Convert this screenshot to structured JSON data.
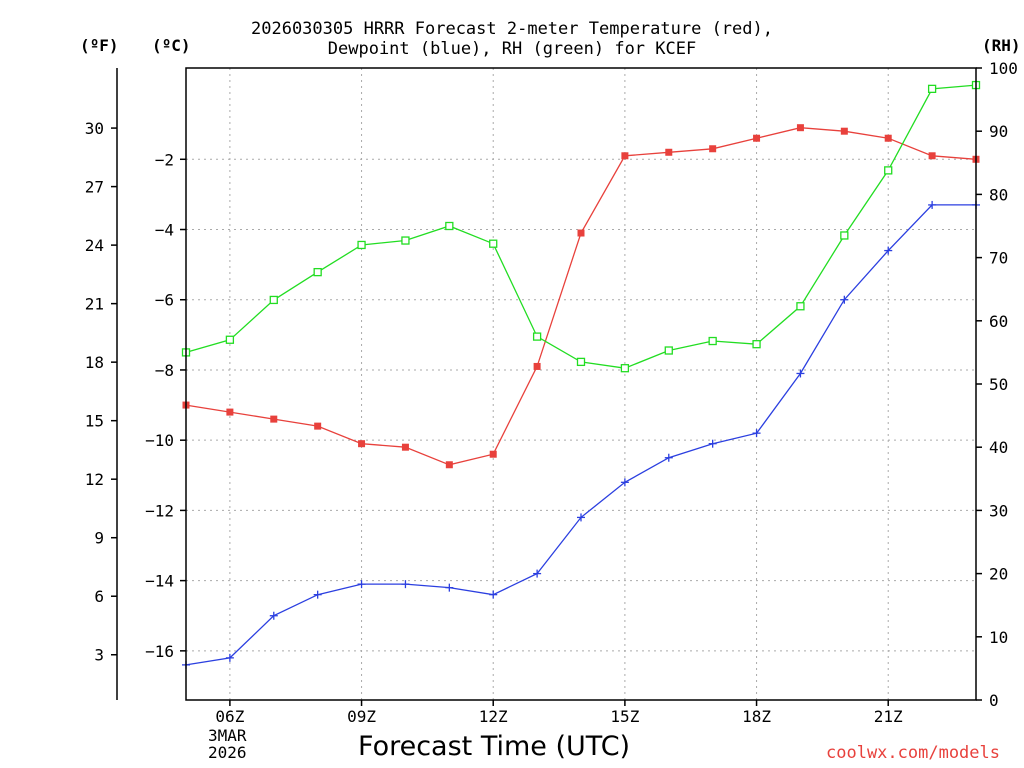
{
  "chart_data": {
    "type": "line",
    "title_line1": "2026030305 HRRR Forecast 2-meter Temperature (red),",
    "title_line2": "Dewpoint (blue), RH (green) for KCEF",
    "xlabel": "Forecast Time (UTC)",
    "credit": "coolwx.com/models",
    "date_label": {
      "line1": "3MAR",
      "line2": "2026"
    },
    "units": {
      "fahrenheit": "(ºF)",
      "celsius": "(ºC)",
      "rh": "(RH)"
    },
    "x_hours": [
      5,
      6,
      7,
      8,
      9,
      10,
      11,
      12,
      13,
      14,
      15,
      16,
      17,
      18,
      19,
      20,
      21,
      22,
      23
    ],
    "x_ticks": [
      {
        "hour": 6,
        "label": "06Z"
      },
      {
        "hour": 9,
        "label": "09Z"
      },
      {
        "hour": 12,
        "label": "12Z"
      },
      {
        "hour": 15,
        "label": "15Z"
      },
      {
        "hour": 18,
        "label": "18Z"
      },
      {
        "hour": 21,
        "label": "21Z"
      }
    ],
    "xlim": [
      5,
      23
    ],
    "ylim_celsius": [
      -17.4,
      0.6
    ],
    "ylim_rh": [
      0,
      100
    ],
    "celsius_ticks": [
      -2,
      -4,
      -6,
      -8,
      -10,
      -12,
      -14,
      -16
    ],
    "fahrenheit_ticks": [
      30,
      27,
      24,
      21,
      18,
      15,
      12,
      9,
      6,
      3
    ],
    "rh_ticks": [
      100,
      90,
      80,
      70,
      60,
      50,
      40,
      30,
      20,
      10,
      0
    ],
    "series": [
      {
        "name": "Temperature",
        "unit": "C",
        "color": "#e8413c",
        "marker": "filled-square",
        "values": [
          -9.0,
          -9.2,
          -9.4,
          -9.6,
          -10.1,
          -10.2,
          -10.7,
          -10.4,
          -7.9,
          -4.1,
          -1.9,
          -1.8,
          -1.7,
          -1.4,
          -1.1,
          -1.2,
          -1.4,
          -1.9,
          -2.0
        ]
      },
      {
        "name": "Dewpoint",
        "unit": "C",
        "color": "#2b3fe0",
        "marker": "plus",
        "values": [
          -16.4,
          -16.2,
          -15.0,
          -14.4,
          -14.1,
          -14.1,
          -14.2,
          -14.4,
          -13.8,
          -12.2,
          -11.2,
          -10.5,
          -10.1,
          -9.8,
          -8.1,
          -6.0,
          -4.6,
          -3.3,
          -3.3
        ]
      },
      {
        "name": "RH",
        "unit": "%",
        "color": "#22dd22",
        "marker": "open-square",
        "values": [
          55,
          57,
          63.3,
          67.7,
          72,
          72.7,
          75,
          72.2,
          57.5,
          53.5,
          52.5,
          55.3,
          56.8,
          56.3,
          62.3,
          73.5,
          83.8,
          96.7,
          97.3
        ]
      }
    ]
  }
}
